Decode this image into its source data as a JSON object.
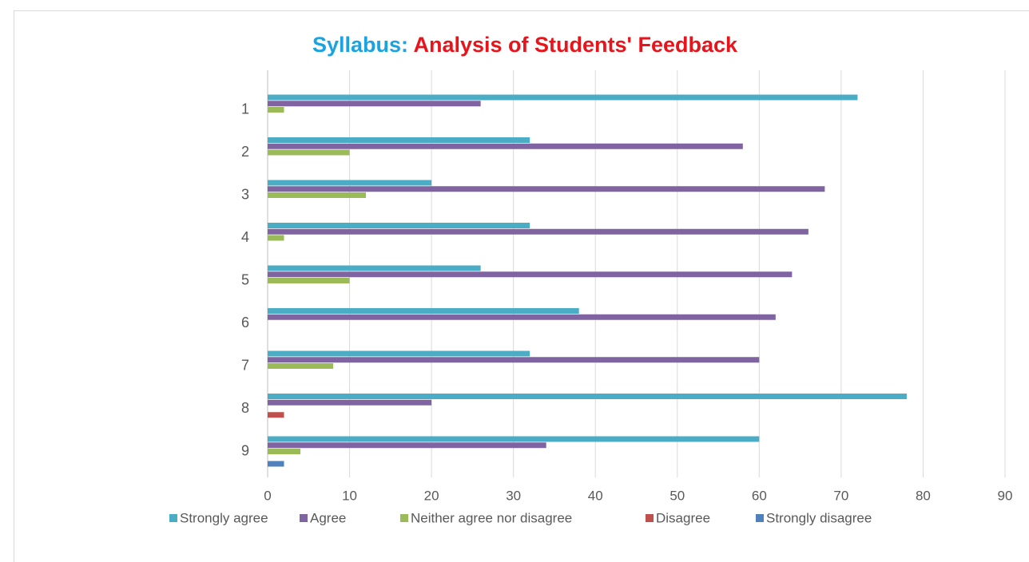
{
  "chart_data": {
    "type": "bar",
    "orientation": "horizontal",
    "title_parts": [
      {
        "text": "Syllabus:",
        "color": "#1aa3e0"
      },
      {
        "text": "Analysis of Students' Feedback",
        "color": "#e8141b"
      }
    ],
    "categories": [
      "1",
      "2",
      "3",
      "4",
      "5",
      "6",
      "7",
      "8",
      "9"
    ],
    "series": [
      {
        "name": "Strongly agree",
        "color": "#4bacc6",
        "values": [
          72,
          32,
          20,
          32,
          26,
          38,
          32,
          78,
          60
        ]
      },
      {
        "name": "Agree",
        "color": "#8064a2",
        "values": [
          26,
          58,
          68,
          66,
          64,
          62,
          60,
          20,
          34
        ]
      },
      {
        "name": "Neither agree nor disagree",
        "color": "#9bbb59",
        "values": [
          2,
          10,
          12,
          2,
          10,
          0,
          8,
          0,
          4
        ]
      },
      {
        "name": "Disagree",
        "color": "#c0504d",
        "values": [
          0,
          0,
          0,
          0,
          0,
          0,
          0,
          2,
          0
        ]
      },
      {
        "name": "Strongly disagree",
        "color": "#4f81bd",
        "values": [
          0,
          0,
          0,
          0,
          0,
          0,
          0,
          0,
          2
        ]
      }
    ],
    "xlim": [
      0,
      90
    ],
    "xticks": [
      0,
      10,
      20,
      30,
      40,
      50,
      60,
      70,
      80,
      90
    ],
    "grid": true,
    "legend": "bottom"
  }
}
